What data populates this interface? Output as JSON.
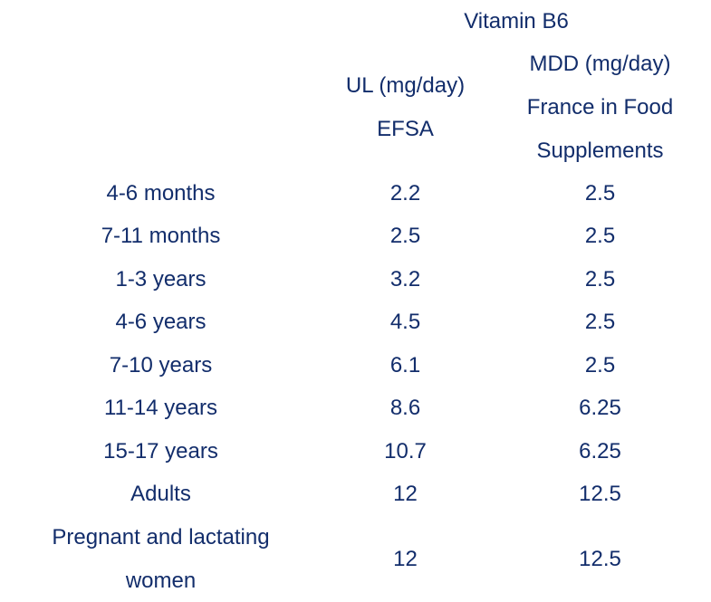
{
  "colors": {
    "text": "#122d6b",
    "background": "#ffffff"
  },
  "header": {
    "title": "Vitamin B6",
    "ul_lines": [
      "UL (mg/day)",
      "EFSA"
    ],
    "mdd_lines": [
      "MDD (mg/day)",
      "France in Food",
      "Supplements"
    ]
  },
  "chart_data": {
    "type": "table",
    "title": "Vitamin B6",
    "columns": [
      "",
      "UL (mg/day) EFSA",
      "MDD (mg/day) France in Food Supplements"
    ],
    "rows": [
      [
        "4-6 months",
        "2.2",
        "2.5"
      ],
      [
        "7-11 months",
        "2.5",
        "2.5"
      ],
      [
        "1-3 years",
        "3.2",
        "2.5"
      ],
      [
        "4-6 years",
        "4.5",
        "2.5"
      ],
      [
        "7-10 years",
        "6.1",
        "2.5"
      ],
      [
        "11-14 years",
        "8.6",
        "6.25"
      ],
      [
        "15-17 years",
        "10.7",
        "6.25"
      ],
      [
        "Adults",
        "12",
        "12.5"
      ],
      [
        "Pregnant and lactating women",
        "12",
        "12.5"
      ]
    ]
  }
}
